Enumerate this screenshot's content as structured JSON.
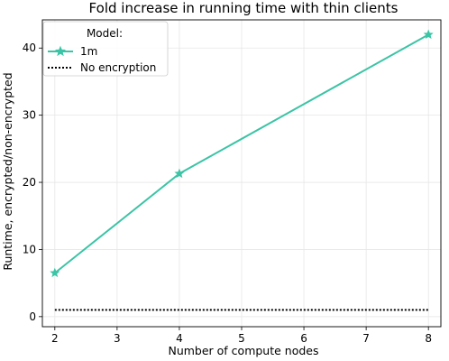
{
  "chart_data": {
    "type": "line",
    "title": "Fold increase in running time with thin clients",
    "xlabel": "Number of compute nodes",
    "ylabel": "Runtime, encrypted/non-encrypted",
    "xlim": [
      1.8,
      8.2
    ],
    "ylim": [
      -1.5,
      44.2
    ],
    "xticks": [
      2,
      3,
      4,
      5,
      6,
      7,
      8
    ],
    "yticks": [
      0,
      10,
      20,
      30,
      40
    ],
    "grid": true,
    "legend": {
      "title": "Model:",
      "placement": "top-left",
      "entries": [
        "1m",
        "No encryption"
      ]
    },
    "series": [
      {
        "name": "1m",
        "color": "#3bc4a5",
        "marker": "star",
        "linestyle": "solid",
        "x": [
          2,
          4,
          8
        ],
        "y": [
          6.5,
          21.3,
          42.0
        ]
      },
      {
        "name": "No encryption",
        "color": "#000000",
        "marker": "none",
        "linestyle": "dotted",
        "x": [
          2,
          8
        ],
        "y": [
          1,
          1
        ]
      }
    ]
  }
}
